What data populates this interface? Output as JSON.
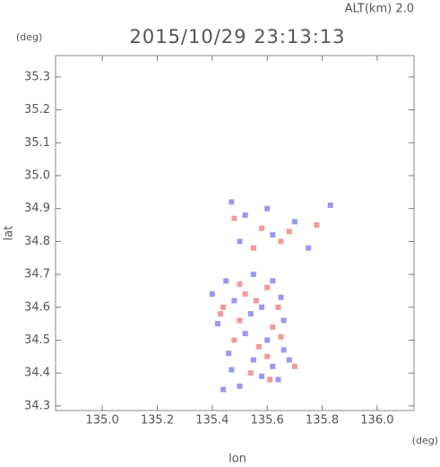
{
  "chart_data": {
    "type": "scatter",
    "title": "2015/10/29 23:13:13",
    "subtitle": "ALT(km) 2.0",
    "y_unit": "(deg)",
    "x_unit": "(deg)",
    "xlabel": "lon",
    "ylabel": "lat",
    "xlim": [
      134.83,
      136.134
    ],
    "ylim": [
      34.286,
      35.365
    ],
    "xticks": [
      {
        "value": 135.0,
        "label": "135.0"
      },
      135.2,
      135.4,
      135.6,
      135.8,
      {
        "value": 136.0,
        "label": "136.0"
      }
    ],
    "yticks": [
      35.3,
      35.2,
      35.1,
      {
        "value": 35.0,
        "label": "35.0"
      },
      34.9,
      34.8,
      34.7,
      34.6,
      34.5,
      34.4,
      34.3
    ],
    "series": [
      {
        "color": "#7f7ff0",
        "x": [
          135.47,
          135.52,
          135.6,
          135.7,
          135.83,
          135.5,
          135.62,
          135.75,
          135.45,
          135.55,
          135.62,
          135.4,
          135.48,
          135.58,
          135.65,
          135.42,
          135.52,
          135.6,
          135.66,
          135.46,
          135.55,
          135.62,
          135.58,
          135.64,
          135.44,
          135.5,
          135.68,
          135.54,
          135.47,
          135.66
        ],
        "y": [
          34.92,
          34.88,
          34.9,
          34.86,
          34.91,
          34.8,
          34.82,
          34.78,
          34.68,
          34.7,
          34.68,
          34.64,
          34.62,
          34.6,
          34.63,
          34.55,
          34.52,
          34.5,
          34.47,
          34.46,
          34.44,
          34.42,
          34.39,
          34.38,
          34.35,
          34.36,
          34.44,
          34.58,
          34.41,
          34.56
        ]
      },
      {
        "color": "#f07f7f",
        "x": [
          135.48,
          135.58,
          135.68,
          135.78,
          135.55,
          135.65,
          135.5,
          135.6,
          135.44,
          135.56,
          135.64,
          135.5,
          135.62,
          135.57,
          135.48,
          135.65,
          135.54,
          135.6,
          135.7,
          135.52,
          135.43,
          135.61
        ],
        "y": [
          34.87,
          34.84,
          34.83,
          34.85,
          34.78,
          34.8,
          34.67,
          34.66,
          34.6,
          34.62,
          34.6,
          34.56,
          34.54,
          34.48,
          34.5,
          34.51,
          34.4,
          34.45,
          34.42,
          34.64,
          34.58,
          34.38
        ]
      }
    ]
  }
}
